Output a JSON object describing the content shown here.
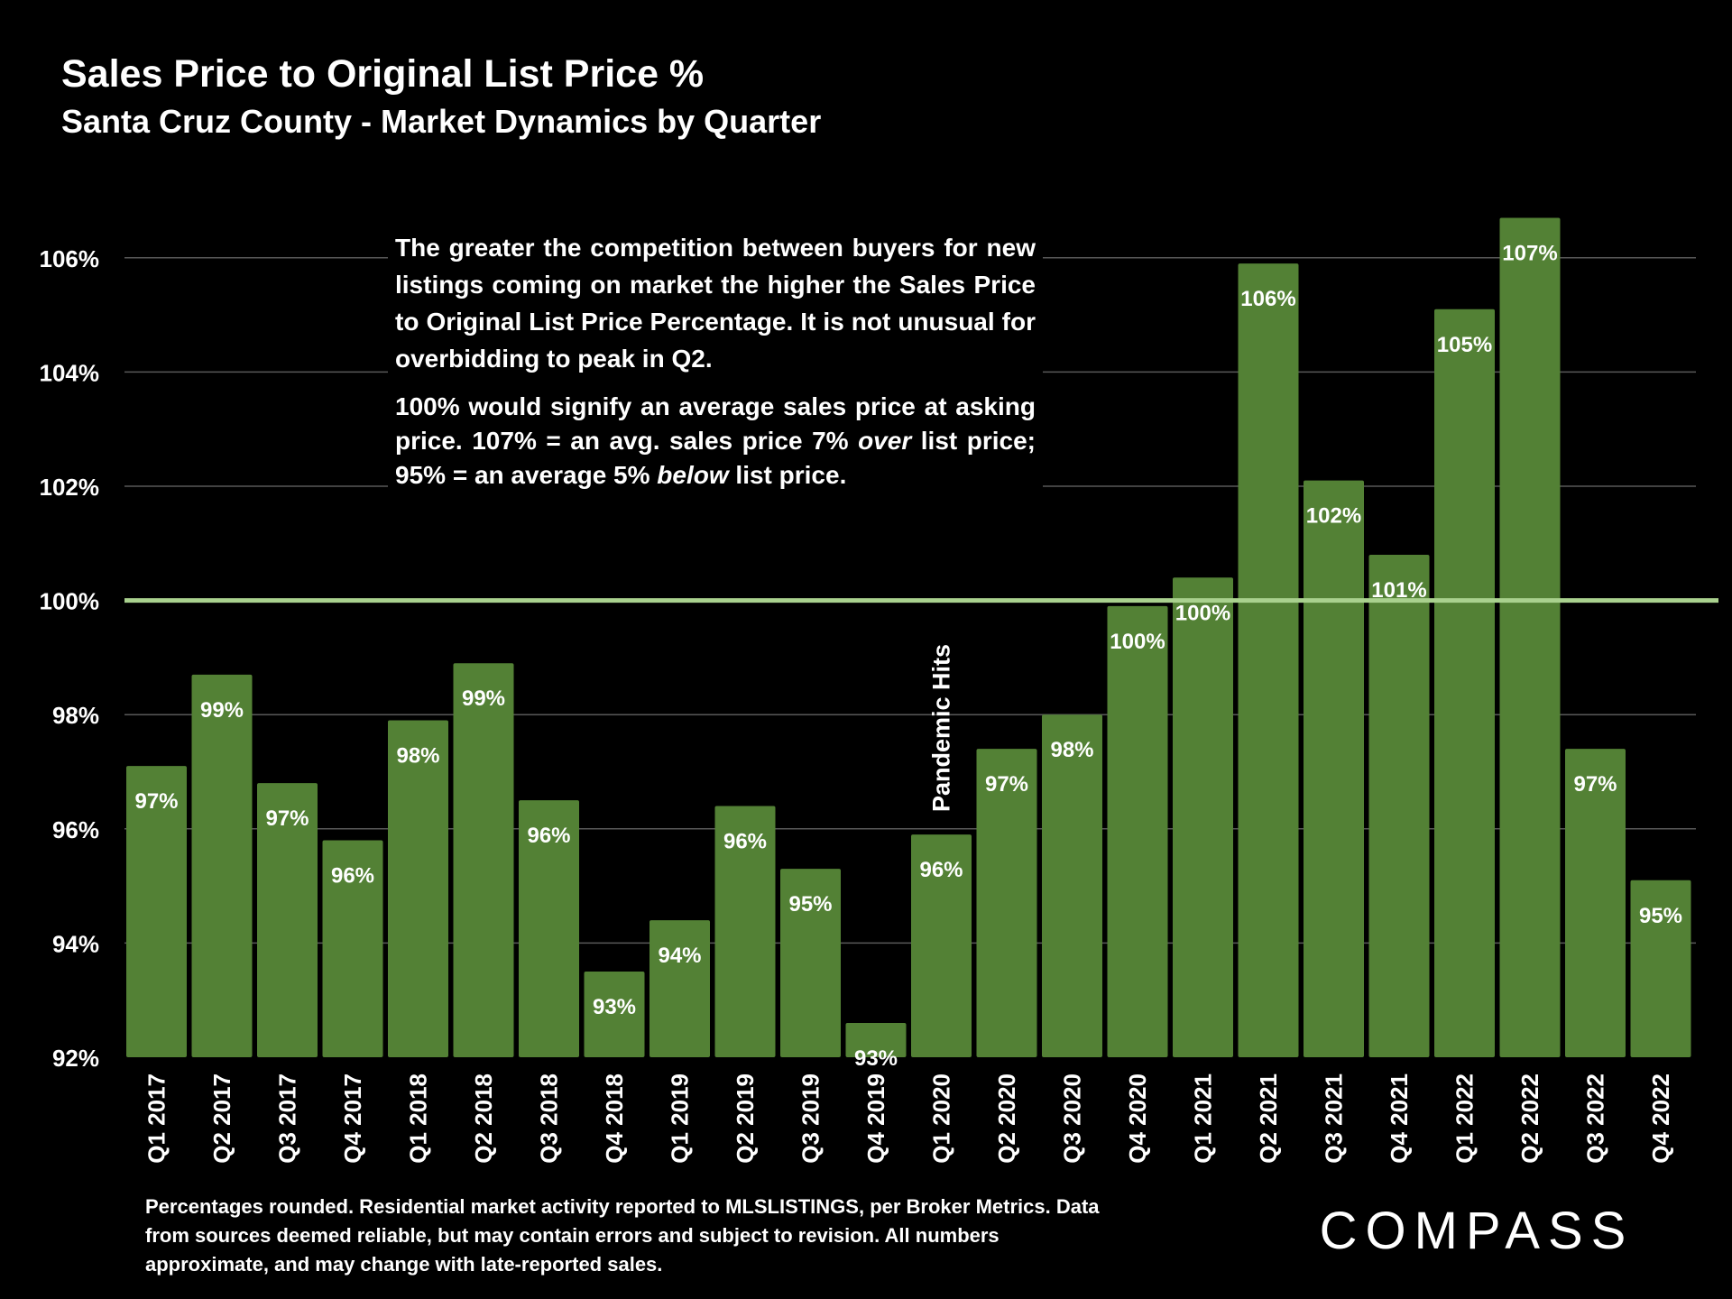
{
  "title": "Sales Price to Original List Price %",
  "subtitle": "Santa Cruz County - Market Dynamics by Quarter",
  "note": {
    "p1": "The greater the competition between buyers for new listings coming on market the higher the Sales Price to Original List Price Percentage. It is not unusual for overbidding to peak in Q2.",
    "p2_a": "100% would signify an average sales price at asking price. 107% = an avg. sales price 7% ",
    "p2_over": "over",
    "p2_b": " list price; 95% = an average 5% ",
    "p2_below": "below",
    "p2_c": " list price."
  },
  "footnote": "Percentages rounded. Residential market activity reported to MLSLISTINGS, per Broker Metrics. Data from sources deemed reliable, but may contain errors and subject to revision. All numbers approximate, and may change with late-reported sales.",
  "logo": {
    "text": "COMPASS"
  },
  "colors": {
    "background": "#000000",
    "bar": "#538135",
    "reference_line": "#a9d18e",
    "grid": "#595959",
    "text": "#ffffff"
  },
  "chart_data": {
    "type": "bar",
    "title": "Sales Price to Original List Price %",
    "subtitle": "Santa Cruz County - Market Dynamics by Quarter",
    "xlabel": "",
    "ylabel": "",
    "ylim": [
      92,
      107
    ],
    "yticks": [
      92,
      94,
      96,
      98,
      100,
      102,
      104,
      106
    ],
    "ytick_labels": [
      "92%",
      "94%",
      "96%",
      "98%",
      "100%",
      "102%",
      "104%",
      "106%"
    ],
    "grid": true,
    "categories": [
      "Q1 2017",
      "Q2 2017",
      "Q3 2017",
      "Q4 2017",
      "Q1 2018",
      "Q2 2018",
      "Q3 2018",
      "Q4 2018",
      "Q1 2019",
      "Q2 2019",
      "Q3 2019",
      "Q4 2019",
      "Q1 2020",
      "Q2 2020",
      "Q3 2020",
      "Q4 2020",
      "Q1 2021",
      "Q2 2021",
      "Q3 2021",
      "Q4 2021",
      "Q1 2022",
      "Q2 2022",
      "Q3 2022",
      "Q4 2022"
    ],
    "values": [
      97.1,
      98.7,
      96.8,
      95.8,
      97.9,
      98.9,
      96.5,
      93.5,
      94.4,
      96.4,
      95.3,
      92.6,
      95.9,
      97.4,
      98.0,
      99.9,
      100.4,
      105.9,
      102.1,
      100.8,
      105.1,
      106.7,
      97.4,
      95.1
    ],
    "data_labels": [
      "97%",
      "99%",
      "97%",
      "96%",
      "98%",
      "99%",
      "96%",
      "93%",
      "94%",
      "96%",
      "95%",
      "93%",
      "96%",
      "97%",
      "98%",
      "100%",
      "100%",
      "106%",
      "102%",
      "101%",
      "105%",
      "107%",
      "97%",
      "95%"
    ],
    "reference_line": {
      "value": 100
    },
    "annotations": [
      {
        "text": "Pandemic Hits",
        "category": "Q1 2020",
        "orientation": "vertical"
      }
    ]
  }
}
